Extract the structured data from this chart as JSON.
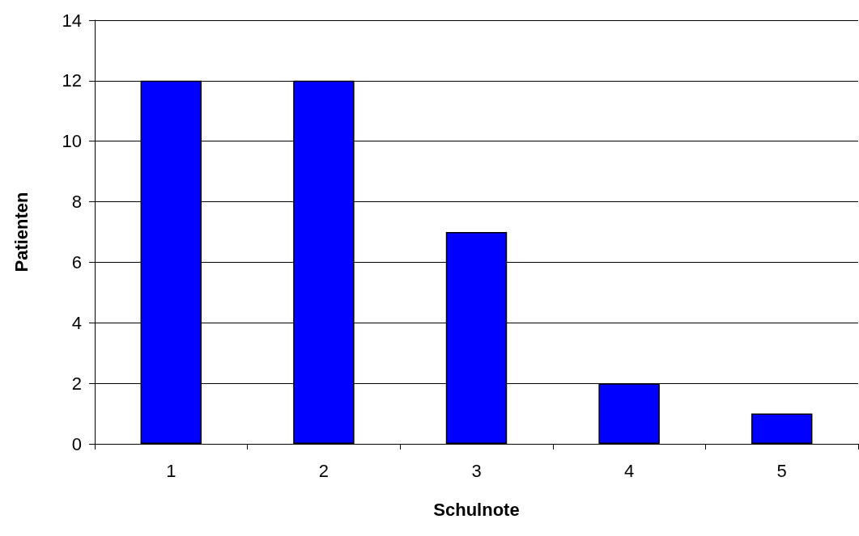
{
  "chart_data": {
    "type": "bar",
    "xlabel": "Schulnote",
    "ylabel": "Patienten",
    "categories": [
      "1",
      "2",
      "3",
      "4",
      "5"
    ],
    "values": [
      12,
      12,
      7,
      2,
      1
    ],
    "color": "#0000ff",
    "ylim": [
      0,
      14
    ],
    "yticks": [
      0,
      2,
      4,
      6,
      8,
      10,
      12,
      14
    ],
    "grid": "y"
  }
}
